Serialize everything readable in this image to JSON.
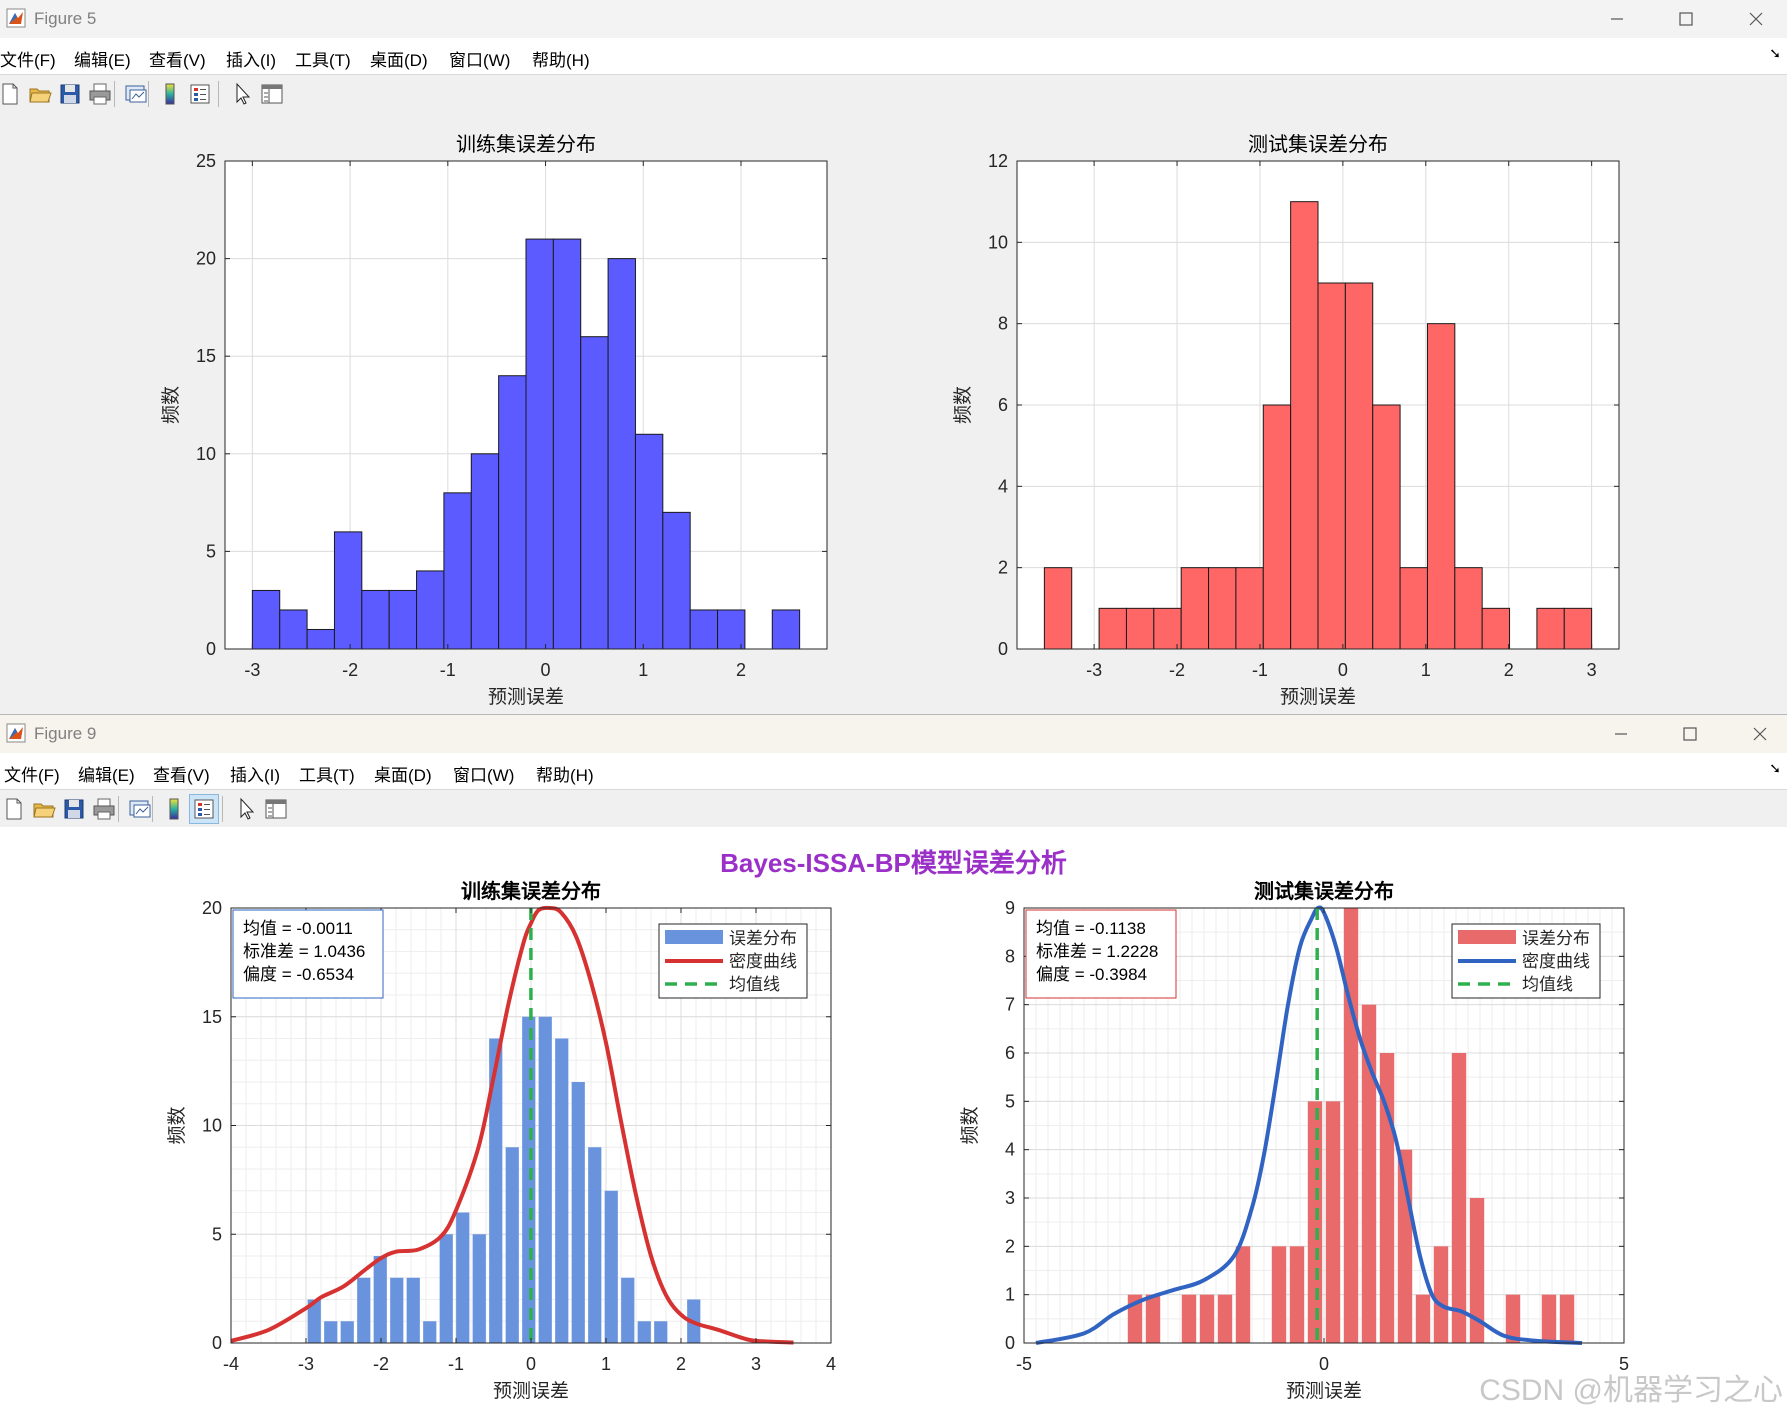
{
  "window5": {
    "title": "Figure 5"
  },
  "window9": {
    "title": "Figure 9"
  },
  "menu": [
    "文件(F)",
    "编辑(E)",
    "查看(V)",
    "插入(I)",
    "工具(T)",
    "桌面(D)",
    "窗口(W)",
    "帮助(H)"
  ],
  "toolbar_icons": [
    "new-file-icon",
    "open-folder-icon",
    "save-icon",
    "print-icon",
    "link-plot-icon",
    "colorbar-icon",
    "legend-icon",
    "pointer-icon",
    "property-inspector-icon"
  ],
  "figure9_suptitle": "Bayes-ISSA-BP模型误差分析",
  "watermark": "CSDN @机器学习之心",
  "chart_data": [
    {
      "type": "bar",
      "figure": "Figure 5",
      "title": "训练集误差分布",
      "xlabel": "预测误差",
      "ylabel": "频数",
      "color": "#5b5bff",
      "bin_edges": [
        -3.0,
        -2.72,
        -2.44,
        -2.16,
        -1.88,
        -1.6,
        -1.32,
        -1.04,
        -0.76,
        -0.48,
        -0.2,
        0.08,
        0.36,
        0.64,
        0.92,
        1.2,
        1.48,
        1.76,
        2.04,
        2.32,
        2.6
      ],
      "values": [
        3,
        2,
        1,
        6,
        3,
        3,
        4,
        8,
        10,
        14,
        21,
        21,
        16,
        20,
        11,
        7,
        2,
        2,
        0,
        2
      ],
      "xlim": [
        -3.28,
        2.88
      ],
      "ylim": [
        0,
        25
      ],
      "xticks": [
        -3,
        -2,
        -1,
        0,
        1,
        2
      ],
      "yticks": [
        0,
        5,
        10,
        15,
        20,
        25
      ],
      "grid": true
    },
    {
      "type": "bar",
      "figure": "Figure 5",
      "title": "测试集误差分布",
      "xlabel": "预测误差",
      "ylabel": "频数",
      "color": "#ff6666",
      "bin_edges": [
        -3.6,
        -3.27,
        -2.94,
        -2.61,
        -2.28,
        -1.95,
        -1.62,
        -1.29,
        -0.96,
        -0.63,
        -0.3,
        0.03,
        0.36,
        0.69,
        1.02,
        1.35,
        1.68,
        2.01,
        2.34,
        2.67,
        3.0
      ],
      "values": [
        2,
        0,
        1,
        1,
        1,
        2,
        2,
        2,
        6,
        11,
        9,
        9,
        6,
        2,
        8,
        2,
        1,
        0,
        1,
        1
      ],
      "xlim": [
        -3.93,
        3.33
      ],
      "ylim": [
        0,
        12
      ],
      "xticks": [
        -3,
        -2,
        -1,
        0,
        1,
        2,
        3
      ],
      "yticks": [
        0,
        2,
        4,
        6,
        8,
        10,
        12
      ],
      "grid": true
    },
    {
      "type": "bar",
      "figure": "Figure 9",
      "title": "训练集误差分布",
      "xlabel": "预测误差",
      "ylabel": "频数",
      "bin_start": -3.0,
      "bin_width": 0.22,
      "values": [
        2,
        1,
        1,
        3,
        4,
        3,
        3,
        1,
        5,
        6,
        5,
        14,
        9,
        15,
        15,
        14,
        12,
        9,
        7,
        3,
        1,
        1,
        0,
        2
      ],
      "xlim": [
        -4,
        4
      ],
      "ylim": [
        0,
        20
      ],
      "xticks": [
        -4,
        -3,
        -2,
        -1,
        0,
        1,
        2,
        3,
        4
      ],
      "yticks": [
        0,
        5,
        10,
        15,
        20
      ],
      "grid": true,
      "bar_color": "#6a93dd",
      "curve_color": "#d63232",
      "mean_color": "#2fb04e",
      "density_curve": {
        "x": [
          -4.0,
          -3.5,
          -3.0,
          -2.8,
          -2.5,
          -2.2,
          -2.0,
          -1.8,
          -1.5,
          -1.2,
          -1.0,
          -0.7,
          -0.5,
          -0.3,
          -0.1,
          0.0,
          0.1,
          0.25,
          0.4,
          0.6,
          0.8,
          1.0,
          1.2,
          1.4,
          1.6,
          1.8,
          2.0,
          2.2,
          2.5,
          2.8,
          3.0,
          3.5
        ],
        "y": [
          0.1,
          0.6,
          1.6,
          2.1,
          2.6,
          3.4,
          3.9,
          4.2,
          4.3,
          4.9,
          6.1,
          9.0,
          12.2,
          15.6,
          18.4,
          19.3,
          19.9,
          20.0,
          19.8,
          18.7,
          16.6,
          13.8,
          10.2,
          6.8,
          4.0,
          2.2,
          1.3,
          0.9,
          0.6,
          0.25,
          0.1,
          0.02
        ]
      },
      "mean_x": -0.0011,
      "stats": [
        "均值 = -0.0011",
        "标准差 = 1.0436",
        "偏度 = -0.6534"
      ],
      "legend": [
        "误差分布",
        "密度曲线",
        "均值线"
      ]
    },
    {
      "type": "bar",
      "figure": "Figure 9",
      "title": "测试集误差分布",
      "xlabel": "预测误差",
      "ylabel": "频数",
      "bin_start": -3.3,
      "bin_width": 0.3,
      "values": [
        1,
        1,
        0,
        1,
        1,
        1,
        2,
        0,
        2,
        2,
        5,
        5,
        9,
        7,
        6,
        4,
        1,
        2,
        6,
        3,
        0,
        1,
        0,
        1,
        1
      ],
      "xlim": [
        -5,
        5
      ],
      "ylim": [
        0,
        9
      ],
      "xticks": [
        -5,
        0,
        5
      ],
      "yticks": [
        0,
        1,
        2,
        3,
        4,
        5,
        6,
        7,
        8,
        9
      ],
      "grid": true,
      "bar_color": "#e86a6a",
      "curve_color": "#3164c2",
      "mean_color": "#2fb04e",
      "density_curve": {
        "x": [
          -4.8,
          -4.0,
          -3.5,
          -3.0,
          -2.5,
          -2.0,
          -1.5,
          -1.2,
          -1.0,
          -0.8,
          -0.6,
          -0.4,
          -0.2,
          -0.1,
          0.0,
          0.2,
          0.4,
          0.6,
          0.8,
          1.0,
          1.2,
          1.4,
          1.6,
          1.8,
          2.0,
          2.3,
          2.6,
          3.0,
          3.5,
          4.3
        ],
        "y": [
          0.0,
          0.2,
          0.6,
          0.9,
          1.1,
          1.3,
          1.8,
          2.8,
          3.9,
          5.4,
          7.0,
          8.2,
          8.8,
          9.0,
          8.9,
          8.2,
          7.2,
          6.3,
          5.6,
          5.0,
          4.2,
          3.0,
          1.8,
          1.0,
          0.75,
          0.65,
          0.45,
          0.15,
          0.05,
          0.0
        ]
      },
      "mean_x": -0.1138,
      "stats": [
        "均值 = -0.1138",
        "标准差 = 1.2228",
        "偏度 = -0.3984"
      ],
      "legend": [
        "误差分布",
        "密度曲线",
        "均值线"
      ]
    }
  ]
}
